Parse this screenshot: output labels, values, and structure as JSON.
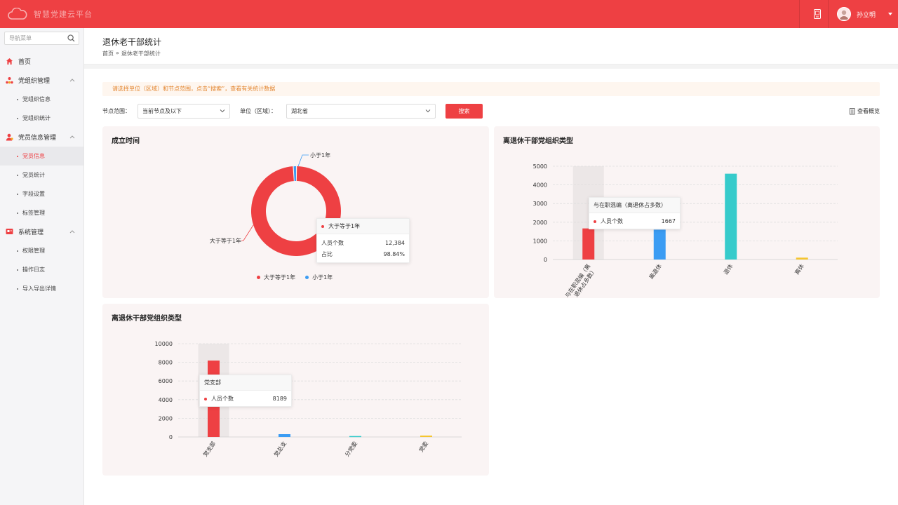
{
  "app": {
    "logo_text": "智慧党建云平台",
    "user_name": "孙立明"
  },
  "sidebar": {
    "search_placeholder": "导航菜单",
    "menu": [
      {
        "type": "group",
        "label": "首页",
        "icon": "home-icon",
        "chevron": false
      },
      {
        "type": "group",
        "label": "党组织管理",
        "icon": "org-icon",
        "chevron": true
      },
      {
        "type": "item",
        "label": "党组织信息",
        "active": false
      },
      {
        "type": "item",
        "label": "党组织统计",
        "active": false
      },
      {
        "type": "group",
        "label": "党员信息管理",
        "icon": "member-icon",
        "chevron": true
      },
      {
        "type": "item",
        "label": "党员信息",
        "active": true
      },
      {
        "type": "item",
        "label": "党员统计",
        "active": false
      },
      {
        "type": "item",
        "label": "字段设置",
        "active": false
      },
      {
        "type": "item",
        "label": "标签管理",
        "active": false
      },
      {
        "type": "group",
        "label": "系统管理",
        "icon": "system-icon",
        "chevron": true
      },
      {
        "type": "item",
        "label": "权限管理",
        "active": false
      },
      {
        "type": "item",
        "label": "操作日志",
        "active": false
      },
      {
        "type": "item",
        "label": "导入导出详情",
        "active": false
      }
    ]
  },
  "page": {
    "title": "退休老干部统计",
    "breadcrumb": [
      "首页",
      "»",
      "退休老干部统计"
    ],
    "notice": "请选择单位（区域）和节点范围，点击“搜索”，查看有关统计数据",
    "filters": {
      "node_label": "节点范围：",
      "node_value": "当前节点及以下",
      "unit_label": "单位（区域）：",
      "unit_value": "湖北省",
      "search_label": "搜索",
      "overview_label": "查看概览"
    }
  },
  "colors": {
    "primary": "#ee4043",
    "blue": "#3b9cf3",
    "teal": "#36cbcb",
    "yellow": "#f5c52f"
  },
  "chart_data": [
    {
      "type": "pie",
      "title": "成立时间",
      "donut": true,
      "slices": [
        {
          "label": "大于等于1年",
          "value": 12384,
          "percent": "98.84%",
          "color": "#ee4043"
        },
        {
          "label": "小于1年",
          "value": 146,
          "color": "#3b9cf3"
        }
      ],
      "legend": [
        "大于等于1年",
        "小于1年"
      ],
      "legend_position": "bottom",
      "tooltip": {
        "title": "大于等于1年",
        "rows": [
          [
            "人员个数",
            "12,384"
          ],
          [
            "占比",
            "98.84%"
          ]
        ]
      }
    },
    {
      "type": "bar",
      "title": "离退休干部党组织类型",
      "categories": [
        "与在职混编（离退休占多数）",
        "离退休",
        "退休",
        "离休"
      ],
      "values": [
        1667,
        1600,
        4600,
        100
      ],
      "colors": [
        "#ee4043",
        "#3b9cf3",
        "#36cbcb",
        "#f5c52f"
      ],
      "ylim": [
        0,
        5000
      ],
      "yticks": [
        0,
        1000,
        2000,
        3000,
        4000,
        5000
      ],
      "grid": true,
      "highlight_index": 0,
      "tooltip": {
        "title": "与在职混编（离退休占多数）",
        "rows": [
          [
            "人员个数",
            "1667"
          ]
        ]
      }
    },
    {
      "type": "bar",
      "title": "离退休干部党组织类型",
      "categories": [
        "党支部",
        "党总支",
        "分党委",
        "党委"
      ],
      "values": [
        8189,
        300,
        100,
        150
      ],
      "colors": [
        "#ee4043",
        "#3b9cf3",
        "#36cbcb",
        "#f5c52f"
      ],
      "ylim": [
        0,
        10000
      ],
      "yticks": [
        0,
        2000,
        4000,
        6000,
        8000,
        10000
      ],
      "grid": true,
      "highlight_index": 0,
      "tooltip": {
        "title": "党支部",
        "rows": [
          [
            "人员个数",
            "8189"
          ]
        ]
      }
    }
  ]
}
